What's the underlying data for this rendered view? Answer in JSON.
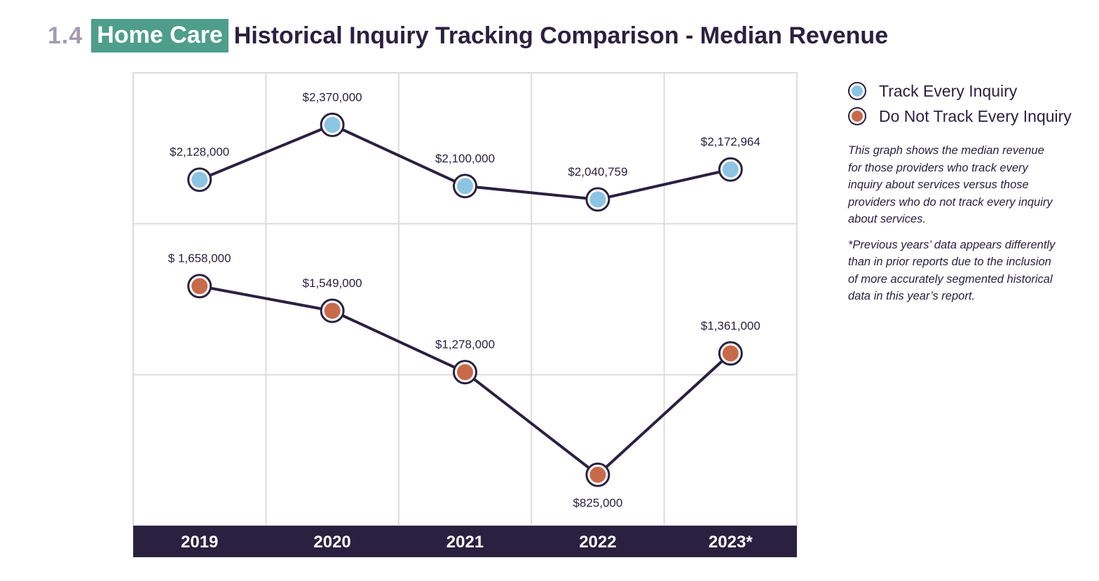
{
  "header": {
    "number": "1.4",
    "tag": "Home Care",
    "title": "Historical Inquiry Tracking Comparison - Median Revenue"
  },
  "legend": {
    "items": [
      {
        "label": "Track Every Inquiry",
        "color": "#8cc4e4"
      },
      {
        "label": "Do Not Track Every Inquiry",
        "color": "#c8694a"
      }
    ]
  },
  "notes": {
    "description": "This graph shows the median revenue for those providers who track every inquiry about services versus those providers who do not track every inquiry about services.",
    "footnote": "*Previous years’ data appears differently than in prior reports due to the inclusion of more accurately segmented historical data in this year’s report."
  },
  "colors": {
    "line": "#2a2140",
    "axis_band": "#2a2140",
    "grid": "#dcdcdc",
    "tag_bg": "#4f9e8c"
  },
  "chart_data": {
    "type": "line",
    "categories": [
      "2019",
      "2020",
      "2021",
      "2022",
      "2023*"
    ],
    "series": [
      {
        "name": "Track Every Inquiry",
        "values": [
          2128000,
          2370000,
          2100000,
          2040759,
          2172964
        ],
        "labels": [
          "$2,128,000",
          "$2,370,000",
          "$2,100,000",
          "$2,040,759",
          "$2,172,964"
        ],
        "color": "#8cc4e4"
      },
      {
        "name": "Do Not Track Every Inquiry",
        "values": [
          1658000,
          1549000,
          1278000,
          825000,
          1361000
        ],
        "labels": [
          "$ 1,658,000",
          "$1,549,000",
          "$1,278,000",
          "$825,000",
          "$1,361,000"
        ],
        "color": "#c8694a"
      }
    ],
    "ylim": [
      600000,
      2600000
    ],
    "grid": true,
    "legend_position": "right"
  }
}
